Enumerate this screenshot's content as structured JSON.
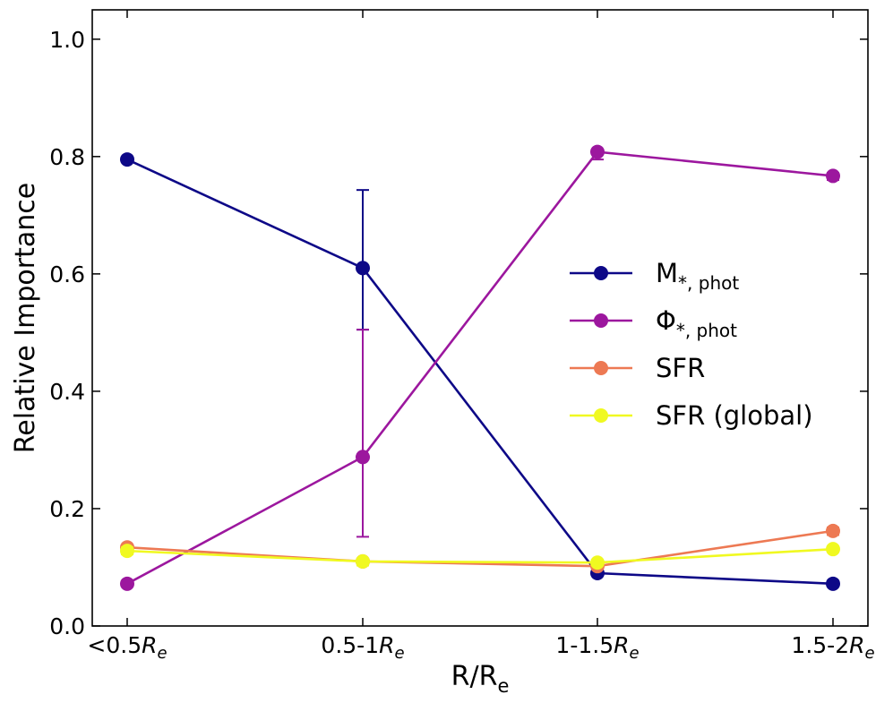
{
  "chart_data": {
    "type": "line",
    "title": "",
    "xlabel": "R/R",
    "xlabel_sub": "e",
    "ylabel": "Relative Importance",
    "ylim": [
      0.0,
      1.05
    ],
    "yticks": [
      0.0,
      0.2,
      0.4,
      0.6,
      0.8,
      1.0
    ],
    "ytick_labels": [
      "0.0",
      "0.2",
      "0.4",
      "0.6",
      "0.8",
      "1.0"
    ],
    "categories": [
      {
        "main": "<0.5",
        "italic": "R",
        "sub": "e"
      },
      {
        "main": "0.5-1",
        "italic": "R",
        "sub": "e"
      },
      {
        "main": "1-1.5",
        "italic": "R",
        "sub": "e"
      },
      {
        "main": "1.5-2",
        "italic": "R",
        "sub": "e"
      }
    ],
    "legend_position": "center-right",
    "series": [
      {
        "name": "M",
        "sub": "*, phot",
        "color": "#0d0887",
        "values": [
          0.795,
          0.61,
          0.09,
          0.072
        ],
        "err_low": [
          0.795,
          0.505,
          0.09,
          0.072
        ],
        "err_high": [
          0.795,
          0.743,
          0.09,
          0.072
        ]
      },
      {
        "name": "Φ",
        "sub": "*, phot",
        "color": "#9c179e",
        "values": [
          0.072,
          0.288,
          0.808,
          0.767
        ],
        "err_low": [
          0.072,
          0.152,
          0.795,
          0.76
        ],
        "err_high": [
          0.072,
          0.505,
          0.812,
          0.772
        ]
      },
      {
        "name": "SFR",
        "sub": "",
        "color": "#ed7953",
        "values": [
          0.134,
          0.11,
          0.102,
          0.162
        ],
        "err_low": [
          0.128,
          0.105,
          0.1,
          0.155
        ],
        "err_high": [
          0.138,
          0.114,
          0.105,
          0.168
        ]
      },
      {
        "name": "SFR (global)",
        "sub": "",
        "color": "#f0f921",
        "values": [
          0.128,
          0.11,
          0.108,
          0.131
        ],
        "err_low": [
          0.122,
          0.103,
          0.104,
          0.126
        ],
        "err_high": [
          0.134,
          0.115,
          0.112,
          0.136
        ]
      }
    ]
  }
}
